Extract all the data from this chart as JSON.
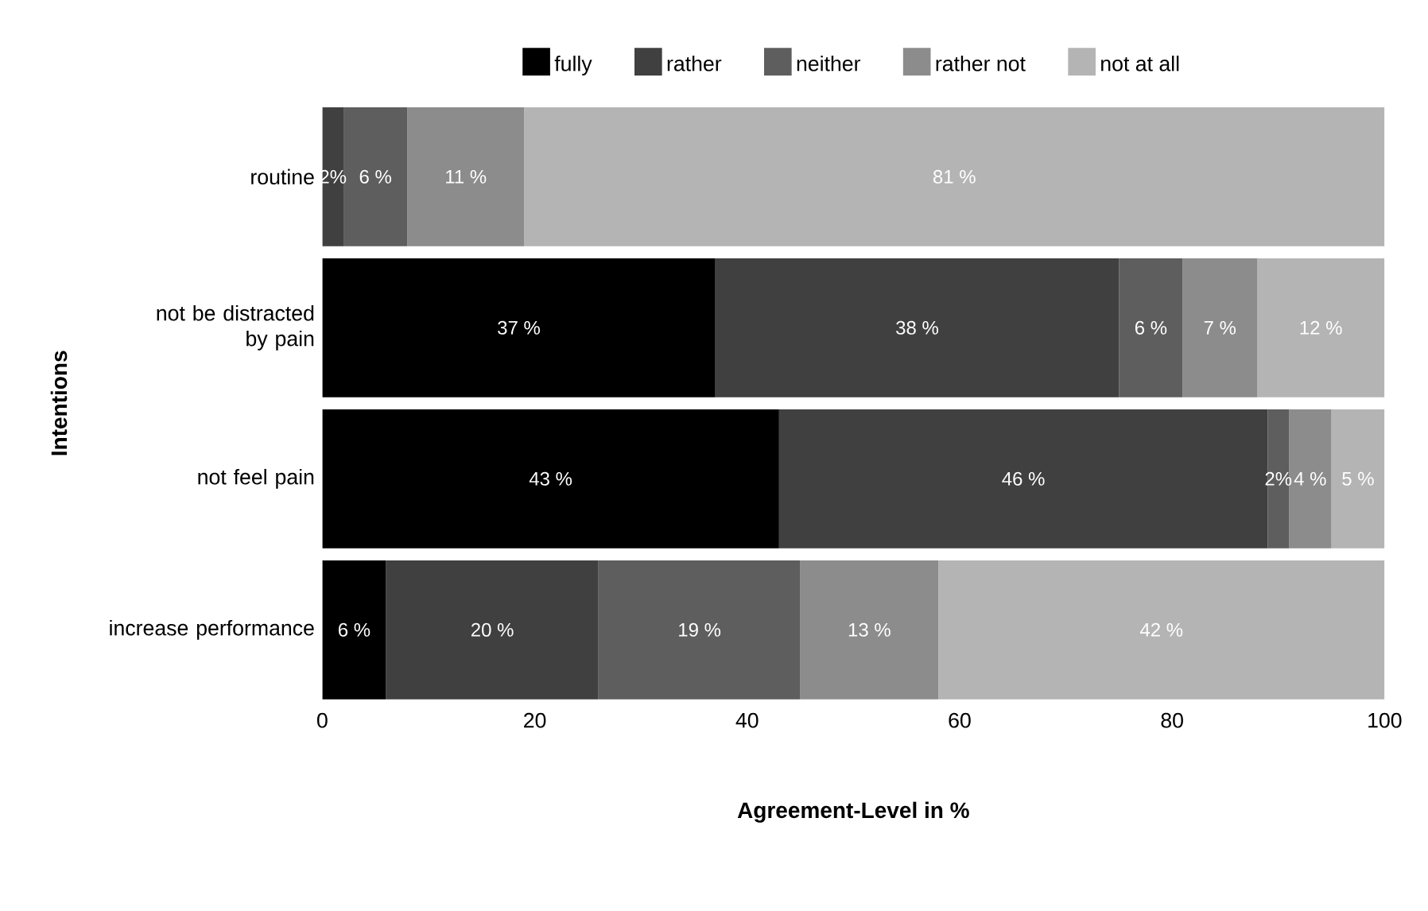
{
  "chart_data": {
    "type": "bar",
    "orientation": "horizontal",
    "stacked": true,
    "xlabel": "Agreement-Level in %",
    "ylabel": "Intentions",
    "categories": [
      "routine",
      "not be distracted by pain",
      "not feel pain",
      "increase performance"
    ],
    "xlim": [
      0,
      100
    ],
    "xticks": [
      0,
      20,
      40,
      60,
      80,
      100
    ],
    "legend": "top",
    "grid": false,
    "series": [
      {
        "name": "fully",
        "color": "#000000",
        "values": [
          0,
          37,
          43,
          6
        ],
        "value_labels": [
          null,
          "37 %",
          "43 %",
          "6 %"
        ]
      },
      {
        "name": "rather",
        "color": "#404040",
        "values": [
          2,
          38,
          46,
          20
        ],
        "value_labels": [
          "2%",
          "38 %",
          "46 %",
          "20 %"
        ]
      },
      {
        "name": "neither",
        "color": "#5e5e5e",
        "values": [
          6,
          6,
          2,
          19
        ],
        "value_labels": [
          "6 %",
          "6 %",
          "2%",
          "19 %"
        ]
      },
      {
        "name": "rather not",
        "color": "#8c8c8c",
        "values": [
          11,
          7,
          4,
          13
        ],
        "value_labels": [
          "11 %",
          "7 %",
          "4 %",
          "13 %"
        ]
      },
      {
        "name": "not at all",
        "color": "#b4b4b4",
        "values": [
          81,
          12,
          5,
          42
        ],
        "value_labels": [
          "81 %",
          "12 %",
          "5 %",
          "42 %"
        ]
      }
    ]
  }
}
